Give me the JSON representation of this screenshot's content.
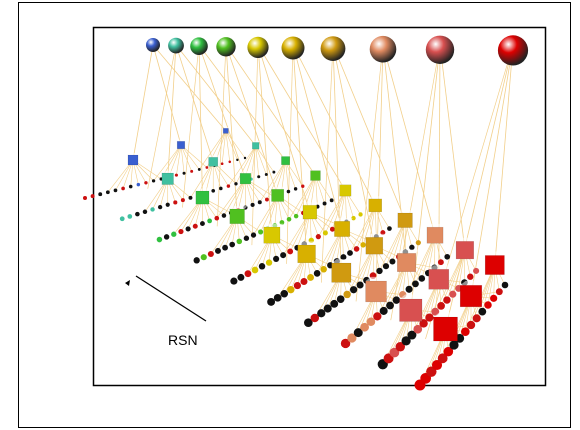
{
  "annotation": {
    "label": "RSN"
  }
}
